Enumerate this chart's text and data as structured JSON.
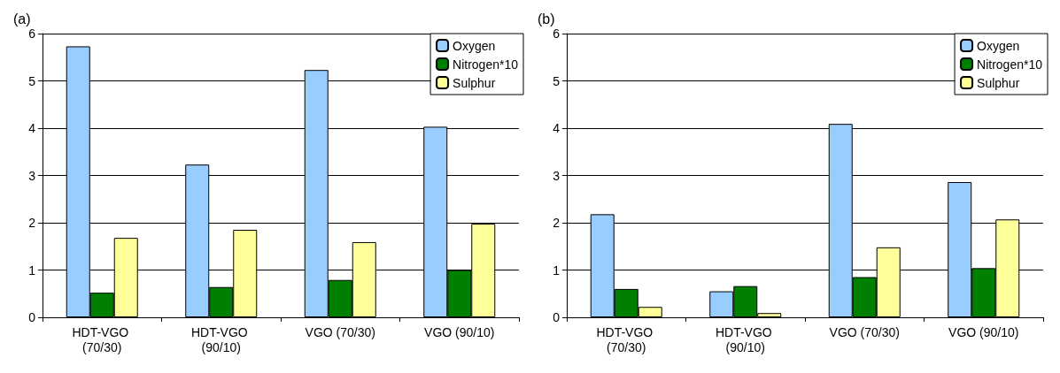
{
  "chart_data": [
    {
      "type": "bar",
      "title": "(a)",
      "categories": [
        "HDT-VGO (70/30)",
        "HDT-VGO (90/10)",
        "VGO (70/30)",
        "VGO (90/10)"
      ],
      "series": [
        {
          "name": "Oxygen",
          "color": "#99ccff",
          "values": [
            5.73,
            3.23,
            5.23,
            4.03
          ]
        },
        {
          "name": "Nitrogen*10",
          "color": "#008000",
          "values": [
            0.52,
            0.64,
            0.79,
            1.0
          ]
        },
        {
          "name": "Sulphur",
          "color": "#ffff99",
          "values": [
            1.68,
            1.85,
            1.59,
            1.98
          ]
        }
      ],
      "ylim": [
        0,
        6
      ],
      "yticks": [
        0,
        1,
        2,
        3,
        4,
        5,
        6
      ],
      "grid": "y",
      "legend": "top right"
    },
    {
      "type": "bar",
      "title": "(b)",
      "categories": [
        "HDT-VGO (70/30)",
        "HDT-VGO (90/10)",
        "VGO (70/30)",
        "VGO (90/10)"
      ],
      "series": [
        {
          "name": "Oxygen",
          "color": "#99ccff",
          "values": [
            2.18,
            0.55,
            4.09,
            2.86
          ]
        },
        {
          "name": "Nitrogen*10",
          "color": "#008000",
          "values": [
            0.6,
            0.66,
            0.85,
            1.04
          ]
        },
        {
          "name": "Sulphur",
          "color": "#ffff99",
          "values": [
            0.22,
            0.09,
            1.48,
            2.07
          ]
        }
      ],
      "ylim": [
        0,
        6
      ],
      "yticks": [
        0,
        1,
        2,
        3,
        4,
        5,
        6
      ],
      "grid": "y",
      "legend": "top right"
    }
  ]
}
